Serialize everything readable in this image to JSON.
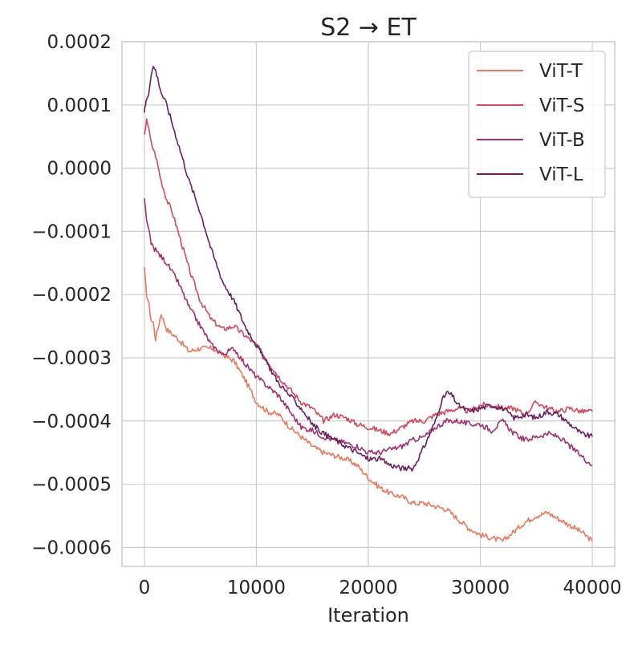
{
  "chart_data": {
    "type": "line",
    "title": "S2 → ET",
    "xlabel": "Iteration",
    "ylabel": "",
    "xlim": [
      -2000,
      42000
    ],
    "ylim": [
      -0.00063,
      0.0002
    ],
    "xticks": [
      0,
      10000,
      20000,
      30000,
      40000
    ],
    "xtick_labels": [
      "0",
      "10000",
      "20000",
      "30000",
      "40000"
    ],
    "yticks": [
      0.0002,
      0.0001,
      0.0,
      -0.0001,
      -0.0002,
      -0.0003,
      -0.0004,
      -0.0005,
      -0.0006
    ],
    "ytick_labels": [
      "0.0002",
      "0.0001",
      "0.0000",
      "−0.0001",
      "−0.0002",
      "−0.0003",
      "−0.0004",
      "−0.0005",
      "−0.0006"
    ],
    "grid": true,
    "legend_position": "top-right",
    "series": [
      {
        "name": "ViT-T",
        "color": "#e8795f",
        "x": [
          0,
          200,
          400,
          600,
          800,
          1000,
          1500,
          2000,
          3000,
          4000,
          5000,
          6000,
          7000,
          8000,
          9000,
          10000,
          11000,
          12000,
          13000,
          14000,
          15000,
          16000,
          17000,
          18000,
          19000,
          20000,
          21000,
          22000,
          23000,
          24000,
          25000,
          26000,
          27000,
          28000,
          29000,
          30000,
          31000,
          32000,
          33000,
          34000,
          35000,
          36000,
          37000,
          38000,
          39000,
          40000
        ],
        "values": [
          -0.00016,
          -0.0002,
          -0.000215,
          -0.00024,
          -0.000245,
          -0.00027,
          -0.00023,
          -0.000255,
          -0.00027,
          -0.00029,
          -0.000285,
          -0.000285,
          -0.000295,
          -0.000305,
          -0.000335,
          -0.00037,
          -0.000385,
          -0.00039,
          -0.00041,
          -0.000425,
          -0.00044,
          -0.00045,
          -0.000455,
          -0.00046,
          -0.00047,
          -0.00049,
          -0.000505,
          -0.000515,
          -0.00052,
          -0.00053,
          -0.00053,
          -0.000535,
          -0.00054,
          -0.000555,
          -0.00057,
          -0.00058,
          -0.000585,
          -0.00059,
          -0.000575,
          -0.00056,
          -0.00055,
          -0.000545,
          -0.000555,
          -0.000565,
          -0.000575,
          -0.00059
        ]
      },
      {
        "name": "ViT-S",
        "color": "#d1495b",
        "x": [
          0,
          200,
          400,
          600,
          800,
          1000,
          1500,
          2000,
          2500,
          3000,
          3500,
          4000,
          5000,
          6000,
          7000,
          8000,
          9000,
          10000,
          11000,
          12000,
          13000,
          14000,
          15000,
          16000,
          17000,
          18000,
          19000,
          20000,
          21000,
          22000,
          23000,
          24000,
          25000,
          26000,
          27000,
          28000,
          29000,
          30000,
          31000,
          32000,
          33000,
          34000,
          35000,
          36000,
          37000,
          38000,
          39000,
          40000
        ],
        "values": [
          5e-05,
          8e-05,
          6e-05,
          4e-05,
          3e-05,
          2e-05,
          -2e-05,
          -5e-05,
          -7e-05,
          -0.0001,
          -0.00013,
          -0.00016,
          -0.00021,
          -0.00024,
          -0.000255,
          -0.00025,
          -0.000265,
          -0.00028,
          -0.000305,
          -0.00033,
          -0.00035,
          -0.00037,
          -0.00038,
          -0.0004,
          -0.00039,
          -0.000395,
          -0.000405,
          -0.00041,
          -0.000415,
          -0.00042,
          -0.00041,
          -0.0004,
          -0.0004,
          -0.00039,
          -0.000385,
          -0.00038,
          -0.000385,
          -0.000375,
          -0.000375,
          -0.00038,
          -0.00038,
          -0.00039,
          -0.00037,
          -0.00038,
          -0.000385,
          -0.00038,
          -0.000385,
          -0.000385
        ]
      },
      {
        "name": "ViT-B",
        "color": "#a3316d",
        "x": [
          0,
          200,
          400,
          600,
          800,
          1000,
          1500,
          2000,
          3000,
          4000,
          5000,
          6000,
          7000,
          8000,
          9000,
          10000,
          11000,
          12000,
          13000,
          14000,
          15000,
          16000,
          17000,
          18000,
          19000,
          20000,
          21000,
          22000,
          23000,
          24000,
          25000,
          26000,
          27000,
          28000,
          29000,
          30000,
          31000,
          32000,
          33000,
          34000,
          35000,
          36000,
          37000,
          38000,
          39000,
          40000
        ],
        "values": [
          -5e-05,
          -8e-05,
          -0.0001,
          -0.00012,
          -0.000125,
          -0.00013,
          -0.00014,
          -0.00015,
          -0.00018,
          -0.00022,
          -0.00025,
          -0.00028,
          -0.000295,
          -0.000285,
          -0.00031,
          -0.00033,
          -0.000345,
          -0.00036,
          -0.000385,
          -0.00041,
          -0.000415,
          -0.000425,
          -0.00043,
          -0.000435,
          -0.00044,
          -0.00045,
          -0.00045,
          -0.000445,
          -0.00044,
          -0.00043,
          -0.000425,
          -0.00041,
          -0.0004,
          -0.0004,
          -0.000405,
          -0.000405,
          -0.000415,
          -0.0004,
          -0.00042,
          -0.00043,
          -0.000425,
          -0.00042,
          -0.000425,
          -0.00044,
          -0.000455,
          -0.00047
        ]
      },
      {
        "name": "ViT-L",
        "color": "#6a1f63",
        "x": [
          0,
          100,
          200,
          400,
          600,
          800,
          1000,
          1500,
          2000,
          3000,
          4000,
          5000,
          6000,
          7000,
          8000,
          9000,
          10000,
          11000,
          12000,
          13000,
          14000,
          15000,
          16000,
          17000,
          18000,
          19000,
          20000,
          21000,
          22000,
          23000,
          24000,
          25000,
          26000,
          26500,
          27000,
          27500,
          28000,
          29000,
          30000,
          31000,
          32000,
          33000,
          34000,
          35000,
          36000,
          37000,
          38000,
          39000,
          40000
        ],
        "values": [
          9e-05,
          0.0001,
          0.00011,
          0.00012,
          0.00015,
          0.00016,
          0.000155,
          0.00012,
          0.0001,
          4e-05,
          -2e-05,
          -7e-05,
          -0.00013,
          -0.00018,
          -0.00021,
          -0.00025,
          -0.00028,
          -0.00031,
          -0.00034,
          -0.00036,
          -0.00038,
          -0.000405,
          -0.00042,
          -0.00043,
          -0.00044,
          -0.00045,
          -0.00046,
          -0.00046,
          -0.00047,
          -0.000475,
          -0.000475,
          -0.00044,
          -0.0004,
          -0.00037,
          -0.000355,
          -0.00036,
          -0.000375,
          -0.000385,
          -0.00038,
          -0.000375,
          -0.00038,
          -0.000395,
          -0.00039,
          -0.000395,
          -0.000385,
          -0.00039,
          -0.000405,
          -0.00042,
          -0.000425
        ]
      }
    ]
  }
}
